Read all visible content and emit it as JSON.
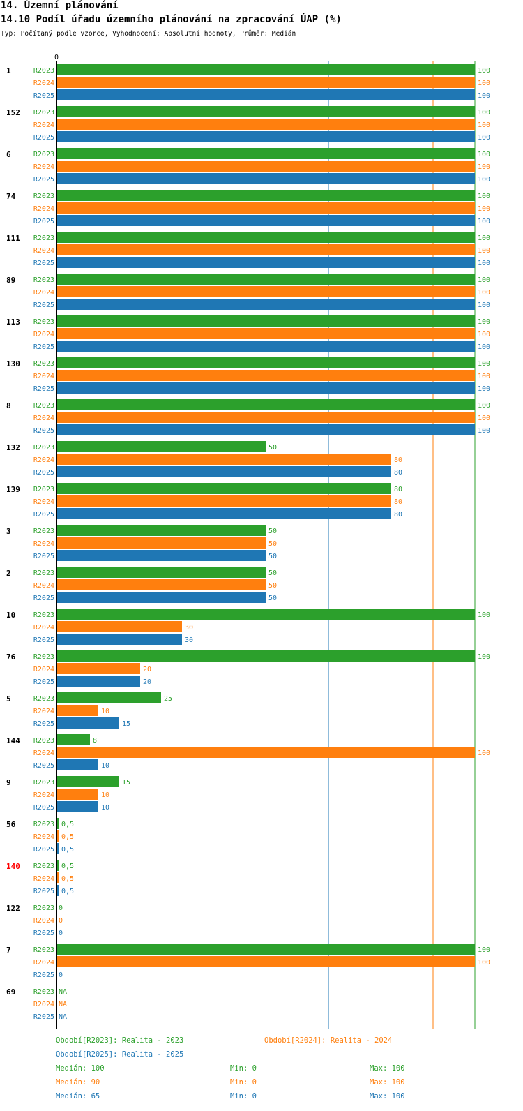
{
  "header": {
    "section": "14. Územní plánování",
    "indicator": "14.10 Podíl úřadu územního plánování na zpracování ÚAP (%)",
    "meta": "Typ: Počítaný podle vzorce, Vyhodnocení: Absolutní hodnoty, Průměr: Medián"
  },
  "chart_data": {
    "type": "bar",
    "orientation": "horizontal",
    "axis_zero_label": "0",
    "xlim": [
      0,
      100
    ],
    "series_names": [
      "R2023",
      "R2024",
      "R2025"
    ],
    "colors": [
      "#2ca02c",
      "#ff7f0e",
      "#1f77b4"
    ],
    "highlight_color": "#ff0000",
    "categories": [
      {
        "label": "1",
        "highlight": false,
        "values": [
          100,
          100,
          100
        ],
        "value_labels": [
          "100",
          "100",
          "100"
        ]
      },
      {
        "label": "152",
        "highlight": false,
        "values": [
          100,
          100,
          100
        ],
        "value_labels": [
          "100",
          "100",
          "100"
        ]
      },
      {
        "label": "6",
        "highlight": false,
        "values": [
          100,
          100,
          100
        ],
        "value_labels": [
          "100",
          "100",
          "100"
        ]
      },
      {
        "label": "74",
        "highlight": false,
        "values": [
          100,
          100,
          100
        ],
        "value_labels": [
          "100",
          "100",
          "100"
        ]
      },
      {
        "label": "111",
        "highlight": false,
        "values": [
          100,
          100,
          100
        ],
        "value_labels": [
          "100",
          "100",
          "100"
        ]
      },
      {
        "label": "89",
        "highlight": false,
        "values": [
          100,
          100,
          100
        ],
        "value_labels": [
          "100",
          "100",
          "100"
        ]
      },
      {
        "label": "113",
        "highlight": false,
        "values": [
          100,
          100,
          100
        ],
        "value_labels": [
          "100",
          "100",
          "100"
        ]
      },
      {
        "label": "130",
        "highlight": false,
        "values": [
          100,
          100,
          100
        ],
        "value_labels": [
          "100",
          "100",
          "100"
        ]
      },
      {
        "label": "8",
        "highlight": false,
        "values": [
          100,
          100,
          100
        ],
        "value_labels": [
          "100",
          "100",
          "100"
        ]
      },
      {
        "label": "132",
        "highlight": false,
        "values": [
          50,
          80,
          80
        ],
        "value_labels": [
          "50",
          "80",
          "80"
        ]
      },
      {
        "label": "139",
        "highlight": false,
        "values": [
          80,
          80,
          80
        ],
        "value_labels": [
          "80",
          "80",
          "80"
        ]
      },
      {
        "label": "3",
        "highlight": false,
        "values": [
          50,
          50,
          50
        ],
        "value_labels": [
          "50",
          "50",
          "50"
        ]
      },
      {
        "label": "2",
        "highlight": false,
        "values": [
          50,
          50,
          50
        ],
        "value_labels": [
          "50",
          "50",
          "50"
        ]
      },
      {
        "label": "10",
        "highlight": false,
        "values": [
          100,
          30,
          30
        ],
        "value_labels": [
          "100",
          "30",
          "30"
        ]
      },
      {
        "label": "76",
        "highlight": false,
        "values": [
          100,
          20,
          20
        ],
        "value_labels": [
          "100",
          "20",
          "20"
        ]
      },
      {
        "label": "5",
        "highlight": false,
        "values": [
          25,
          10,
          15
        ],
        "value_labels": [
          "25",
          "10",
          "15"
        ]
      },
      {
        "label": "144",
        "highlight": false,
        "values": [
          8,
          100,
          10
        ],
        "value_labels": [
          "8",
          "100",
          "10"
        ]
      },
      {
        "label": "9",
        "highlight": false,
        "values": [
          15,
          10,
          10
        ],
        "value_labels": [
          "15",
          "10",
          "10"
        ]
      },
      {
        "label": "56",
        "highlight": false,
        "values": [
          0.5,
          0.5,
          0.5
        ],
        "value_labels": [
          "0,5",
          "0,5",
          "0,5"
        ]
      },
      {
        "label": "140",
        "highlight": true,
        "values": [
          0.5,
          0.5,
          0.5
        ],
        "value_labels": [
          "0,5",
          "0,5",
          "0,5"
        ]
      },
      {
        "label": "122",
        "highlight": false,
        "values": [
          0,
          0,
          0
        ],
        "value_labels": [
          "0",
          "0",
          "0"
        ]
      },
      {
        "label": "7",
        "highlight": false,
        "values": [
          100,
          100,
          0
        ],
        "value_labels": [
          "100",
          "100",
          "0"
        ]
      },
      {
        "label": "69",
        "highlight": false,
        "values": [
          null,
          null,
          null
        ],
        "value_labels": [
          "NA",
          "NA",
          "NA"
        ]
      }
    ],
    "reference_lines": [
      {
        "series": "R2025",
        "statistic": "median",
        "value": 65
      },
      {
        "series": "R2024",
        "statistic": "median",
        "value": 90
      },
      {
        "series": "R2023",
        "statistic": "median",
        "value": 100
      }
    ]
  },
  "legend": {
    "r2023": "Období[R2023]: Realita - 2023",
    "r2024": "Období[R2024]: Realita - 2024",
    "r2025": "Období[R2025]: Realita - 2025"
  },
  "stats": [
    {
      "median": "Medián: 100",
      "min": "Min: 0",
      "max": "Max: 100"
    },
    {
      "median": "Medián: 90",
      "min": "Min: 0",
      "max": "Max: 100"
    },
    {
      "median": "Medián: 65",
      "min": "Min: 0",
      "max": "Max: 100"
    }
  ]
}
